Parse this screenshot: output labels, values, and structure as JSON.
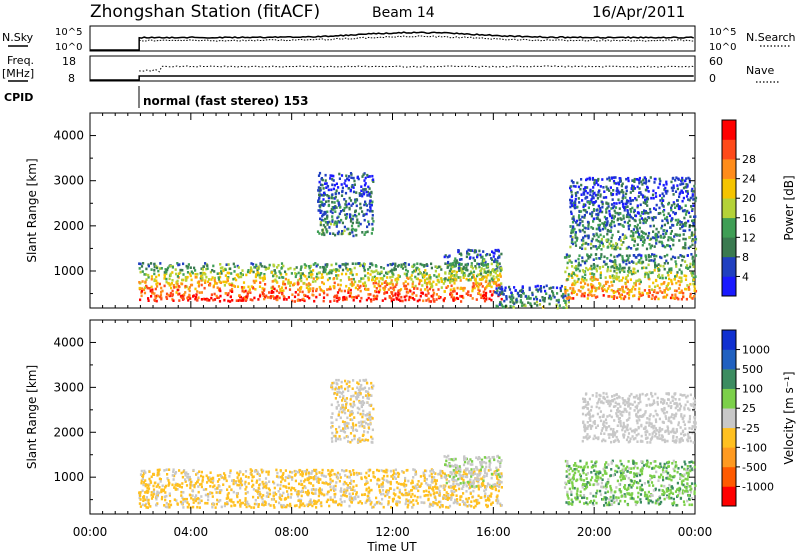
{
  "header": {
    "title": "Zhongshan Station (fitACF)",
    "beam": "Beam 14",
    "date": "16/Apr/2011"
  },
  "status_panels": {
    "nsky": {
      "label": "N.Sky",
      "ticks": [
        "10^5",
        "10^0"
      ]
    },
    "nsearch": {
      "label": "N.Search",
      "ticks": [
        "10^5",
        "10^0"
      ]
    },
    "freq": {
      "label_line1": "Freq.",
      "label_line2": "[MHz]",
      "ticks": [
        "18",
        "8"
      ]
    },
    "nave": {
      "label": "Nave",
      "ticks": [
        "60",
        "0"
      ]
    },
    "cpid": {
      "label": "CPID",
      "text": "normal (fast stereo) 153"
    }
  },
  "x_axis": {
    "label": "Time UT",
    "ticks": [
      "00:00",
      "04:00",
      "08:00",
      "12:00",
      "16:00",
      "20:00",
      "00:00"
    ]
  },
  "colors": {
    "power": [
      "#1a1aff",
      "#2040c0",
      "#3a7a50",
      "#3f9e55",
      "#b4d238",
      "#f5c400",
      "#ff8c1a",
      "#ff4a1a",
      "#ff0000"
    ],
    "velocity": [
      "#ff0000",
      "#ff5a00",
      "#ff9a20",
      "#ffc020",
      "#c8c8c8",
      "#7cd04a",
      "#3c8c60",
      "#2060c0",
      "#1030d0"
    ]
  },
  "chart_data": [
    {
      "type": "heatmap",
      "title": "",
      "ylabel": "Slant Range [km]",
      "xlabel": "Time UT",
      "xlim": [
        0,
        24
      ],
      "ylim": [
        180,
        4500
      ],
      "y_ticks": [
        "1000",
        "2000",
        "3000",
        "4000"
      ],
      "colorbar": {
        "label": "Power [dB]",
        "ticks": [
          "4",
          "8",
          "12",
          "16",
          "20",
          "24",
          "28"
        ],
        "range": [
          0,
          30
        ]
      },
      "regions": [
        {
          "t": [
            1.9,
            16.3
          ],
          "r": [
            350,
            1200
          ],
          "value": 22
        },
        {
          "t": [
            9.0,
            11.2
          ],
          "r": [
            1800,
            3200
          ],
          "value": 8
        },
        {
          "t": [
            14.0,
            16.3
          ],
          "r": [
            800,
            1500
          ],
          "value": 12
        },
        {
          "t": [
            16.0,
            19.0
          ],
          "r": [
            200,
            700
          ],
          "value": 10
        },
        {
          "t": [
            18.8,
            24.0
          ],
          "r": [
            400,
            1400
          ],
          "value": 18
        },
        {
          "t": [
            19.0,
            24.0
          ],
          "r": [
            1500,
            3100
          ],
          "value": 8
        }
      ]
    },
    {
      "type": "heatmap",
      "title": "",
      "ylabel": "Slant Range [km]",
      "xlabel": "Time UT",
      "xlim": [
        0,
        24
      ],
      "ylim": [
        180,
        4500
      ],
      "y_ticks": [
        "1000",
        "2000",
        "3000",
        "4000"
      ],
      "colorbar": {
        "label": "Velocity [m s⁻¹]",
        "ticks": [
          "-1000",
          "-500",
          "-100",
          "-25",
          "25",
          "100",
          "500",
          "1000"
        ],
        "range": [
          -1000,
          1000
        ]
      },
      "regions": [
        {
          "t": [
            1.9,
            16.3
          ],
          "r": [
            350,
            1200
          ],
          "value": -150
        },
        {
          "t": [
            9.5,
            11.2
          ],
          "r": [
            1800,
            3200
          ],
          "value": -80
        },
        {
          "t": [
            14.0,
            16.3
          ],
          "r": [
            800,
            1500
          ],
          "value": 60
        },
        {
          "t": [
            18.8,
            24.0
          ],
          "r": [
            400,
            1400
          ],
          "value": 250
        },
        {
          "t": [
            19.5,
            24.0
          ],
          "r": [
            1800,
            2900
          ],
          "value": 0
        }
      ]
    }
  ]
}
